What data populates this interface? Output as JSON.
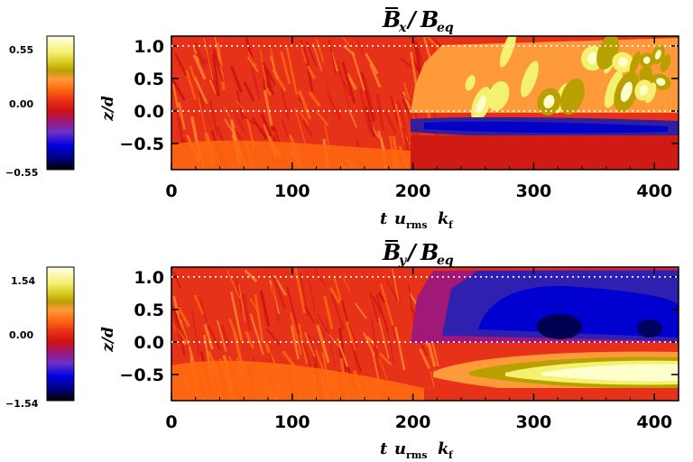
{
  "chart_data": [
    {
      "type": "heatmap",
      "title": "B̄x/Beq",
      "title_main": "B",
      "title_sub": "x",
      "title_denom": "B",
      "title_denom_sub": "eq",
      "xlabel": "t urms kf",
      "xlabel_parts": [
        "t",
        "u",
        "rms",
        "k",
        "f"
      ],
      "ylabel": "z/d",
      "xlim": [
        0,
        420
      ],
      "ylim": [
        -0.9,
        1.15
      ],
      "x_ticks": [
        0,
        100,
        200,
        300,
        400
      ],
      "x_tick_labels": [
        "0",
        "100",
        "200",
        "300",
        "400"
      ],
      "y_ticks": [
        -0.5,
        0.0,
        0.5,
        1.0
      ],
      "y_tick_labels": [
        "−0.5",
        "0.0",
        "0.5",
        "1.0"
      ],
      "reference_lines_z": [
        0.0,
        1.0
      ],
      "colorbar": {
        "min": -0.55,
        "max": 0.55,
        "tick_values": [
          0.55,
          0.0,
          -0.55
        ],
        "tick_labels": [
          "0.55",
          "0.00",
          "−0.55"
        ]
      },
      "regions": [
        {
          "x": [
            0,
            195
          ],
          "z": [
            -0.9,
            1.15
          ],
          "value": 0.0
        },
        {
          "x": [
            200,
            420
          ],
          "z": [
            0.0,
            1.1
          ],
          "value": 0.35
        },
        {
          "x": [
            200,
            420
          ],
          "z": [
            -0.35,
            -0.1
          ],
          "value": -0.45
        },
        {
          "x": [
            200,
            420
          ],
          "z": [
            -0.9,
            -0.35
          ],
          "value": -0.1
        }
      ]
    },
    {
      "type": "heatmap",
      "title": "B̄y/Beq",
      "title_main": "B",
      "title_sub": "y",
      "title_denom": "B",
      "title_denom_sub": "eq",
      "xlabel": "t urms kf",
      "xlabel_parts": [
        "t",
        "u",
        "rms",
        "k",
        "f"
      ],
      "ylabel": "z/d",
      "xlim": [
        0,
        420
      ],
      "ylim": [
        -0.9,
        1.15
      ],
      "x_ticks": [
        0,
        100,
        200,
        300,
        400
      ],
      "x_tick_labels": [
        "0",
        "100",
        "200",
        "300",
        "400"
      ],
      "y_ticks": [
        -0.5,
        0.0,
        0.5,
        1.0
      ],
      "y_tick_labels": [
        "−0.5",
        "0.0",
        "0.5",
        "1.0"
      ],
      "reference_lines_z": [
        0.0,
        1.0
      ],
      "colorbar": {
        "min": -1.54,
        "max": 1.54,
        "tick_values": [
          1.54,
          0.0,
          -1.54
        ],
        "tick_labels": [
          "1.54",
          "0.00",
          "−1.54"
        ]
      },
      "regions": [
        {
          "x": [
            0,
            200
          ],
          "z": [
            -0.9,
            1.15
          ],
          "value": 0.0
        },
        {
          "x": [
            220,
            420
          ],
          "z": [
            -0.1,
            1.0
          ],
          "value": -1.0
        },
        {
          "x": [
            300,
            330
          ],
          "z": [
            0.05,
            0.35
          ],
          "value": -1.5
        },
        {
          "x": [
            230,
            420
          ],
          "z": [
            -0.6,
            -0.25
          ],
          "value": 1.3
        }
      ]
    }
  ],
  "colormap": [
    "#000000",
    "#000070",
    "#0000e0",
    "#5a30d0",
    "#9020a0",
    "#b00060",
    "#cc1010",
    "#e53219",
    "#ff6a10",
    "#ff9a3a",
    "#b8a000",
    "#f0f060",
    "#ffff9a",
    "#ffffe8"
  ]
}
